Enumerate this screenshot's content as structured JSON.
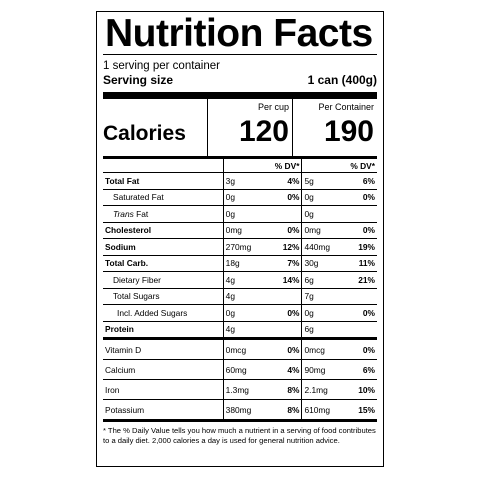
{
  "title": "Nutrition Facts",
  "servings_per_container": "1 serving per container",
  "serving_size_label": "Serving size",
  "serving_size_value": "1 can (400g)",
  "calories": {
    "label": "Calories",
    "per_cup_header": "Per cup",
    "per_container_header": "Per Container",
    "per_cup": "120",
    "per_container": "190"
  },
  "dv_header": "% DV*",
  "nutrients": [
    {
      "name": "Total Fat",
      "a1": "3g",
      "d1": "4%",
      "a2": "5g",
      "d2": "6%"
    },
    {
      "name": "Saturated Fat",
      "a1": "0g",
      "d1": "0%",
      "a2": "0g",
      "d2": "0%"
    },
    {
      "name_italic": "Trans",
      "name": " Fat",
      "a1": "0g",
      "d1": "",
      "a2": "0g",
      "d2": ""
    },
    {
      "name": "Cholesterol",
      "a1": "0mg",
      "d1": "0%",
      "a2": "0mg",
      "d2": "0%"
    },
    {
      "name": "Sodium",
      "a1": "270mg",
      "d1": "12%",
      "a2": "440mg",
      "d2": "19%"
    },
    {
      "name": "Total Carb.",
      "a1": "18g",
      "d1": "7%",
      "a2": "30g",
      "d2": "11%"
    },
    {
      "name": "Dietary Fiber",
      "a1": "4g",
      "d1": "14%",
      "a2": "6g",
      "d2": "21%"
    },
    {
      "name": "Total Sugars",
      "a1": "4g",
      "d1": "",
      "a2": "7g",
      "d2": ""
    },
    {
      "name": "Incl. Added Sugars",
      "a1": "0g",
      "d1": "0%",
      "a2": "0g",
      "d2": "0%"
    },
    {
      "name": "Protein",
      "a1": "4g",
      "d1": "",
      "a2": "6g",
      "d2": ""
    }
  ],
  "vitamins": [
    {
      "name": "Vitamin D",
      "a1": "0mcg",
      "d1": "0%",
      "a2": "0mcg",
      "d2": "0%"
    },
    {
      "name": "Calcium",
      "a1": "60mg",
      "d1": "4%",
      "a2": "90mg",
      "d2": "6%"
    },
    {
      "name": "Iron",
      "a1": "1.3mg",
      "d1": "8%",
      "a2": "2.1mg",
      "d2": "10%"
    },
    {
      "name": "Potassium",
      "a1": "380mg",
      "d1": "8%",
      "a2": "610mg",
      "d2": "15%"
    }
  ],
  "footnote": "* The % Daily Value tells you how much a nutrient in a serving of food contributes to a daily diet. 2,000 calories a day is used for general nutrition advice."
}
